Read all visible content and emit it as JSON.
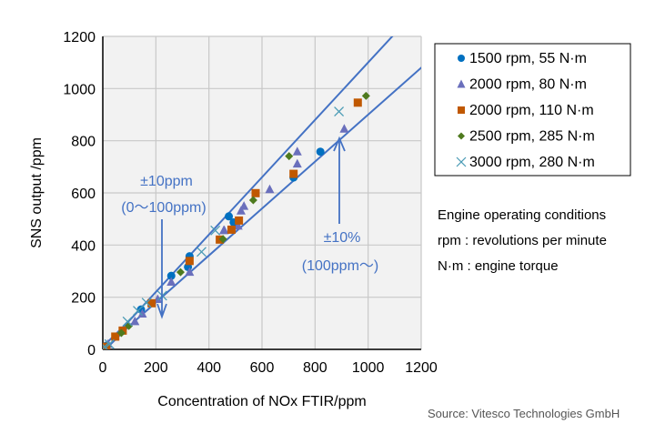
{
  "chart_data": {
    "type": "scatter",
    "xlabel": "Concentration of NOx FTIR/ppm",
    "ylabel": "SNS output /ppm",
    "xlim": [
      0,
      1200
    ],
    "ylim": [
      0,
      1200
    ],
    "xticks": [
      0,
      200,
      400,
      600,
      800,
      1000,
      1200
    ],
    "yticks": [
      0,
      200,
      400,
      600,
      800,
      1000,
      1200
    ],
    "grid": true,
    "legend_placement": "right",
    "series": [
      {
        "name": "1500 rpm, 55 N·m",
        "marker": "circle",
        "color": "#0070C0",
        "points": [
          [
            13,
            14
          ],
          [
            144,
            153
          ],
          [
            258,
            282
          ],
          [
            321,
            316
          ],
          [
            327,
            357
          ],
          [
            475,
            510
          ],
          [
            493,
            487
          ],
          [
            719,
            659
          ],
          [
            820,
            758
          ]
        ]
      },
      {
        "name": "2000 rpm, 80 N·m",
        "marker": "triangle",
        "color": "#6A6FBC",
        "points": [
          [
            20,
            20
          ],
          [
            121,
            107
          ],
          [
            149,
            136
          ],
          [
            207,
            192
          ],
          [
            258,
            258
          ],
          [
            327,
            296
          ],
          [
            456,
            456
          ],
          [
            458,
            456
          ],
          [
            510,
            473
          ],
          [
            521,
            531
          ],
          [
            532,
            549
          ],
          [
            629,
            613
          ],
          [
            733,
            711
          ],
          [
            733,
            758
          ],
          [
            910,
            845
          ]
        ]
      },
      {
        "name": "2000 rpm, 110 N·m",
        "marker": "square",
        "color": "#C05800",
        "points": [
          [
            13,
            10
          ],
          [
            47,
            49
          ],
          [
            75,
            72
          ],
          [
            184,
            177
          ],
          [
            327,
            339
          ],
          [
            441,
            421
          ],
          [
            485,
            459
          ],
          [
            513,
            494
          ],
          [
            576,
            599
          ],
          [
            719,
            673
          ],
          [
            961,
            946
          ]
        ]
      },
      {
        "name": "2500 rpm, 285 N·m",
        "marker": "diamond",
        "color": "#4E7A1E",
        "points": [
          [
            70,
            63
          ],
          [
            98,
            90
          ],
          [
            293,
            296
          ],
          [
            453,
            423
          ],
          [
            567,
            572
          ],
          [
            702,
            741
          ],
          [
            992,
            972
          ]
        ]
      },
      {
        "name": "3000 rpm, 280 N·m",
        "marker": "x",
        "color": "#4A9BB5",
        "points": [
          [
            7,
            10
          ],
          [
            25,
            20
          ],
          [
            93,
            107
          ],
          [
            132,
            148
          ],
          [
            165,
            179
          ],
          [
            224,
            206
          ],
          [
            372,
            374
          ],
          [
            424,
            456
          ],
          [
            890,
            912
          ]
        ]
      }
    ],
    "tolerance_lines": {
      "color": "#4472C4",
      "low_range_ppm": 10,
      "low_range_limit": 100,
      "high_range_percent": 10
    },
    "annotations": [
      {
        "text1": "±10ppm",
        "text2": "(0～100ppm)",
        "arrow_to": [
          220,
          230
        ]
      },
      {
        "text1": "±10%",
        "text2": "(100ppm～)",
        "arrow_to": [
          900,
          810
        ]
      }
    ]
  },
  "notes": {
    "line1": "Engine operating conditions",
    "line2": "rpm : revolutions per minute",
    "line3": "N·m : engine torque"
  },
  "source": "Source: Vitesco Technologies GmbH"
}
